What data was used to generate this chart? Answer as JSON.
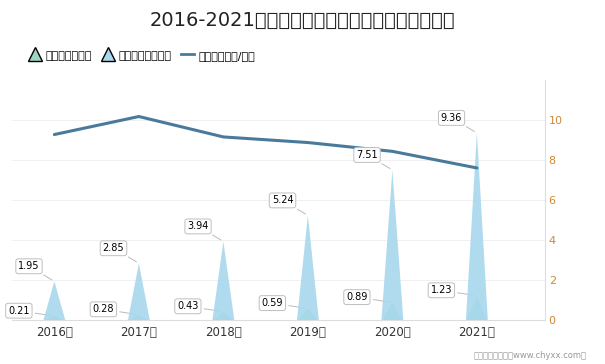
{
  "title": "2016-2021年宿州市快递业务量及业务收入统计图",
  "years": [
    "2016年",
    "2017年",
    "2018年",
    "2019年",
    "2020年",
    "2021年"
  ],
  "x_vals": [
    0,
    1,
    2,
    3,
    4,
    5
  ],
  "volume": [
    0.21,
    0.28,
    0.43,
    0.59,
    0.89,
    1.23
  ],
  "revenue": [
    1.95,
    2.85,
    3.94,
    5.24,
    7.51,
    9.36
  ],
  "avg_price": [
    9.28,
    10.18,
    9.16,
    8.88,
    8.44,
    7.61
  ],
  "volume_color": "#9dd5c0",
  "revenue_color": "#a8d8ed",
  "line_color": "#4a7a9b",
  "bg_color": "#ffffff",
  "right_ylim": [
    0,
    12
  ],
  "right_yticks": [
    0,
    2,
    4,
    6,
    8,
    10
  ],
  "title_fontsize": 14,
  "legend_label_volume": "业务量（亿件）",
  "legend_label_revenue": "业务收入（亿元）",
  "legend_label_price": "平均单价（元/件）",
  "footer": "制图：智研咨询（www.chyxx.com）",
  "ann_box_color_vol": "#e8f8f2",
  "ann_box_color_rev": "#e8f4fb",
  "ann_edge_color": "#aaaaaa",
  "right_tick_color": "#cc8833"
}
